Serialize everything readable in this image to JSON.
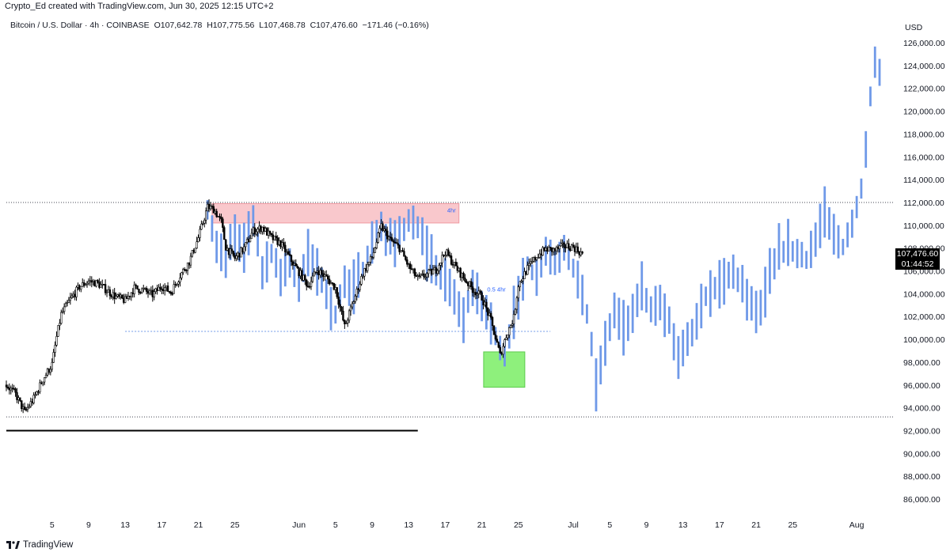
{
  "header": {
    "credit": "Crypto_Ed created with TradingView.com, Jun 30, 2025 12:15 UTC+2"
  },
  "symbol": {
    "name": "Bitcoin / U.S. Dollar · 4h · COINBASE",
    "open": "O107,642.78",
    "high": "H107,775.56",
    "low": "L107,468.78",
    "close": "C107,476.60",
    "change": "−171.46 (−0.16%)"
  },
  "axis": {
    "currency": "USD"
  },
  "price_tag": {
    "price": "107,476.60",
    "countdown": "01:44:52"
  },
  "annotations": {
    "supply_zone_label": "4hr",
    "fvg_label": "0.5 4hr"
  },
  "branding": {
    "logo_text": "TradingView"
  },
  "colors": {
    "candle": "#000000",
    "projection": "#6f99e8",
    "supply_zone": "#f9c8cc",
    "demand_zone": "#8ef07c",
    "annotation_text": "#2962ff"
  },
  "chart_data": {
    "type": "candlestick",
    "ylim": [
      84000,
      127000
    ],
    "y_ticks": [
      126000,
      124000,
      122000,
      120000,
      118000,
      116000,
      114000,
      112000,
      110000,
      108000,
      106000,
      104000,
      102000,
      100000,
      98000,
      96000,
      94000,
      92000,
      90000,
      88000,
      86000
    ],
    "y_tick_labels": [
      "126,000.00",
      "124,000.00",
      "122,000.00",
      "120,000.00",
      "118,000.00",
      "116,000.00",
      "114,000.00",
      "112,000.00",
      "110,000.00",
      "108,000.00",
      "106,000.00",
      "104,000.00",
      "102,000.00",
      "100,000.00",
      "98,000.00",
      "96,000.00",
      "94,000.00",
      "92,000.00",
      "90,000.00",
      "88,000.00",
      "86,000.00"
    ],
    "x_ticks": [
      {
        "day": 5,
        "label": "5"
      },
      {
        "day": 9,
        "label": "9"
      },
      {
        "day": 13,
        "label": "13"
      },
      {
        "day": 17,
        "label": "17"
      },
      {
        "day": 21,
        "label": "21"
      },
      {
        "day": 25,
        "label": "25"
      },
      {
        "day": 32,
        "label": "Jun"
      },
      {
        "day": 36,
        "label": "5"
      },
      {
        "day": 40,
        "label": "9"
      },
      {
        "day": 44,
        "label": "13"
      },
      {
        "day": 48,
        "label": "17"
      },
      {
        "day": 52,
        "label": "21"
      },
      {
        "day": 56,
        "label": "25"
      },
      {
        "day": 62,
        "label": "Jul"
      },
      {
        "day": 66,
        "label": "5"
      },
      {
        "day": 70,
        "label": "9"
      },
      {
        "day": 74,
        "label": "13"
      },
      {
        "day": 78,
        "label": "17"
      },
      {
        "day": 82,
        "label": "21"
      },
      {
        "day": 86,
        "label": "25"
      },
      {
        "day": 93,
        "label": "Aug"
      }
    ],
    "reference_lines": [
      {
        "price": 112000,
        "style": "dotted"
      },
      {
        "price": 93200,
        "style": "dotted"
      }
    ],
    "zones": [
      {
        "name": "supply",
        "x0": 22.5,
        "x1": 49.5,
        "y0": 110200,
        "y1": 111900
      },
      {
        "name": "demand",
        "x0": 52.2,
        "x1": 56.7,
        "y0": 95800,
        "y1": 98900
      }
    ],
    "segments": [
      {
        "name": "support",
        "x0": 13,
        "x1": 59.5,
        "price": 100700,
        "style": "dotted"
      },
      {
        "name": "level",
        "x0": 0,
        "x1": 45,
        "price": 92000,
        "style": "solid"
      }
    ],
    "candle_path": [
      [
        0,
        96000
      ],
      [
        1,
        95200
      ],
      [
        2,
        93600
      ],
      [
        3,
        94800
      ],
      [
        4,
        96500
      ],
      [
        5,
        97800
      ],
      [
        5.5,
        100200
      ],
      [
        6,
        102200
      ],
      [
        7,
        103500
      ],
      [
        8,
        104600
      ],
      [
        9,
        105100
      ],
      [
        10,
        104900
      ],
      [
        11,
        104300
      ],
      [
        12,
        103700
      ],
      [
        13,
        103400
      ],
      [
        14,
        104500
      ],
      [
        15,
        104300
      ],
      [
        16,
        103900
      ],
      [
        17,
        104700
      ],
      [
        18,
        104100
      ],
      [
        19,
        105600
      ],
      [
        20,
        106800
      ],
      [
        21,
        108900
      ],
      [
        22,
        111600
      ],
      [
        22.7,
        111400
      ],
      [
        23.5,
        110300
      ],
      [
        24,
        108100
      ],
      [
        25,
        107100
      ],
      [
        26,
        108000
      ],
      [
        27,
        109500
      ],
      [
        28,
        109800
      ],
      [
        29,
        108900
      ],
      [
        30,
        108400
      ],
      [
        31,
        107100
      ],
      [
        32,
        105900
      ],
      [
        33,
        104700
      ],
      [
        34,
        106100
      ],
      [
        35,
        105400
      ],
      [
        36,
        104500
      ],
      [
        37,
        101100
      ],
      [
        38,
        103400
      ],
      [
        39,
        105800
      ],
      [
        40,
        107200
      ],
      [
        41,
        109900
      ],
      [
        42,
        108700
      ],
      [
        43,
        108000
      ],
      [
        44,
        106400
      ],
      [
        45,
        105300
      ],
      [
        46,
        105700
      ],
      [
        47,
        106100
      ],
      [
        48,
        107700
      ],
      [
        49,
        106500
      ],
      [
        50,
        105400
      ],
      [
        51,
        104400
      ],
      [
        52,
        103700
      ],
      [
        53,
        101600
      ],
      [
        54,
        98600
      ],
      [
        54.7,
        100400
      ],
      [
        55.5,
        101900
      ],
      [
        56,
        104800
      ],
      [
        57,
        106200
      ],
      [
        58,
        107300
      ],
      [
        59,
        107900
      ],
      [
        60,
        107800
      ],
      [
        61,
        108200
      ],
      [
        62,
        108100
      ],
      [
        63,
        107476
      ]
    ],
    "projection_path": [
      [
        22,
        111200
      ],
      [
        23,
        108100
      ],
      [
        24,
        107100
      ],
      [
        25,
        109300
      ],
      [
        26,
        108000
      ],
      [
        27,
        110600
      ],
      [
        28,
        106100
      ],
      [
        29,
        107600
      ],
      [
        30,
        105600
      ],
      [
        31,
        106800
      ],
      [
        32,
        104600
      ],
      [
        33,
        107600
      ],
      [
        34,
        106100
      ],
      [
        35,
        104100
      ],
      [
        36,
        102100
      ],
      [
        37,
        105200
      ],
      [
        38,
        104600
      ],
      [
        39,
        106100
      ],
      [
        40,
        108600
      ],
      [
        41,
        109600
      ],
      [
        42,
        108600
      ],
      [
        43,
        109100
      ],
      [
        44,
        110400
      ],
      [
        45,
        109600
      ],
      [
        46,
        107600
      ],
      [
        47,
        106100
      ],
      [
        48,
        105100
      ],
      [
        49,
        103600
      ],
      [
        50,
        101700
      ],
      [
        51,
        104600
      ],
      [
        52,
        103100
      ],
      [
        53,
        101600
      ],
      [
        54,
        99100
      ],
      [
        54.6,
        98600
      ],
      [
        55.2,
        101100
      ],
      [
        56,
        104100
      ],
      [
        57,
        106600
      ],
      [
        58,
        105100
      ],
      [
        59,
        107900
      ],
      [
        60,
        106600
      ],
      [
        61,
        107900
      ],
      [
        62,
        106300
      ],
      [
        63,
        104100
      ],
      [
        63.8,
        101100
      ],
      [
        64.5,
        96000
      ],
      [
        65.5,
        99600
      ],
      [
        66.5,
        102600
      ],
      [
        67.5,
        101100
      ],
      [
        68.5,
        102100
      ],
      [
        69.5,
        104600
      ],
      [
        70.5,
        102600
      ],
      [
        71.5,
        103100
      ],
      [
        72.5,
        101600
      ],
      [
        73.5,
        98600
      ],
      [
        74.5,
        100100
      ],
      [
        75.5,
        101600
      ],
      [
        76.5,
        103600
      ],
      [
        77.5,
        104600
      ],
      [
        78.5,
        105100
      ],
      [
        79.5,
        106100
      ],
      [
        80.5,
        104600
      ],
      [
        81.5,
        103100
      ],
      [
        82.5,
        102600
      ],
      [
        83.5,
        105600
      ],
      [
        84.5,
        107600
      ],
      [
        85.5,
        108100
      ],
      [
        86.5,
        107600
      ],
      [
        87.5,
        107100
      ],
      [
        88.5,
        108600
      ],
      [
        89.5,
        111100
      ],
      [
        90.5,
        109100
      ],
      [
        91.5,
        108100
      ],
      [
        92.5,
        110100
      ],
      [
        93.5,
        113100
      ],
      [
        94,
        116600
      ],
      [
        94.5,
        121100
      ],
      [
        95,
        124100
      ],
      [
        95.5,
        123400
      ]
    ],
    "projection_last": [
      95.5,
      123400
    ]
  }
}
